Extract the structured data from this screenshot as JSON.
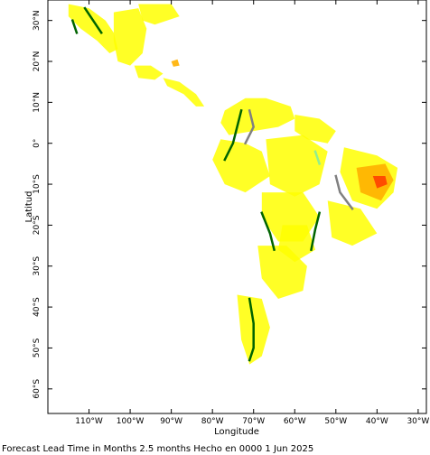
{
  "figure": {
    "y_axis_title": "Latitud",
    "x_axis_title": "Longitude",
    "caption": "Forecast Lead Time in Months 2.5 months Hecho en 0000 1 Jun 2025"
  },
  "map": {
    "lon_range": [
      -120,
      -28
    ],
    "lat_range": [
      -66,
      35
    ],
    "lon_ticks": [
      {
        "value": -110,
        "label": "110°W"
      },
      {
        "value": -100,
        "label": "100°W"
      },
      {
        "value": -90,
        "label": "90°W"
      },
      {
        "value": -80,
        "label": "80°W"
      },
      {
        "value": -70,
        "label": "70°W"
      },
      {
        "value": -60,
        "label": "60°W"
      },
      {
        "value": -50,
        "label": "50°W"
      },
      {
        "value": -40,
        "label": "40°W"
      },
      {
        "value": -30,
        "label": "30°W"
      }
    ],
    "lat_ticks": [
      {
        "value": 30,
        "label": "30°N"
      },
      {
        "value": 20,
        "label": "20°N"
      },
      {
        "value": 10,
        "label": "10°N"
      },
      {
        "value": 0,
        "label": "0°"
      },
      {
        "value": -10,
        "label": "10°S"
      },
      {
        "value": -20,
        "label": "20°S"
      },
      {
        "value": -30,
        "label": "30°S"
      },
      {
        "value": -40,
        "label": "40°S"
      },
      {
        "value": -50,
        "label": "50°S"
      },
      {
        "value": -60,
        "label": "60°S"
      }
    ],
    "colors": {
      "yellow": "#ffff00",
      "orange": "#ffb000",
      "red": "#ff4000",
      "dark_green": "#006400",
      "light_green": "#90ee90",
      "gray": "#808080"
    },
    "regions": [
      {
        "name": "Baja California / NW Mexico",
        "color": "yellow",
        "points": [
          [
            -115,
            34
          ],
          [
            -110,
            33
          ],
          [
            -106,
            30
          ],
          [
            -104,
            27
          ],
          [
            -103,
            23
          ],
          [
            -105,
            22
          ],
          [
            -108,
            25
          ],
          [
            -112,
            28
          ],
          [
            -115,
            31
          ]
        ]
      },
      {
        "name": "Mexican highlands",
        "color": "yellow",
        "points": [
          [
            -104,
            32
          ],
          [
            -98,
            33
          ],
          [
            -96,
            28
          ],
          [
            -97,
            22
          ],
          [
            -100,
            19
          ],
          [
            -103,
            20
          ],
          [
            -104,
            25
          ]
        ]
      },
      {
        "name": "Texas / Gulf coast",
        "color": "yellow",
        "points": [
          [
            -98,
            34
          ],
          [
            -90,
            34
          ],
          [
            -88,
            31
          ],
          [
            -94,
            29
          ],
          [
            -97,
            30
          ]
        ]
      },
      {
        "name": "Southern Mexico",
        "color": "yellow",
        "points": [
          [
            -99,
            19
          ],
          [
            -95,
            19
          ],
          [
            -92,
            17
          ],
          [
            -94,
            15.5
          ],
          [
            -98,
            16
          ]
        ]
      },
      {
        "name": "Central America",
        "color": "yellow",
        "points": [
          [
            -92,
            16
          ],
          [
            -88,
            15
          ],
          [
            -84,
            12
          ],
          [
            -82,
            9
          ],
          [
            -84,
            9
          ],
          [
            -87,
            12
          ],
          [
            -91,
            14
          ]
        ]
      },
      {
        "name": "Colombia / Venezuela",
        "color": "yellow",
        "points": [
          [
            -77,
            8
          ],
          [
            -72,
            11
          ],
          [
            -67,
            11
          ],
          [
            -61,
            9
          ],
          [
            -60,
            6
          ],
          [
            -64,
            4
          ],
          [
            -70,
            3
          ],
          [
            -76,
            2
          ],
          [
            -78,
            5
          ]
        ]
      },
      {
        "name": "Guianas / North Brazil",
        "color": "yellow",
        "points": [
          [
            -60,
            7
          ],
          [
            -54,
            6
          ],
          [
            -50,
            3
          ],
          [
            -52,
            0
          ],
          [
            -57,
            1
          ],
          [
            -60,
            3
          ]
        ]
      },
      {
        "name": "Amazon west",
        "color": "yellow",
        "points": [
          [
            -78,
            1
          ],
          [
            -72,
            0
          ],
          [
            -68,
            -2
          ],
          [
            -66,
            -8
          ],
          [
            -72,
            -12
          ],
          [
            -77,
            -10
          ],
          [
            -80,
            -4
          ]
        ]
      },
      {
        "name": "Amazon central",
        "color": "yellow",
        "points": [
          [
            -67,
            1
          ],
          [
            -58,
            2
          ],
          [
            -52,
            -2
          ],
          [
            -54,
            -10
          ],
          [
            -60,
            -13
          ],
          [
            -66,
            -10
          ]
        ]
      },
      {
        "name": "Northeast Brazil",
        "color": "yellow",
        "points": [
          [
            -48,
            -1
          ],
          [
            -40,
            -3
          ],
          [
            -35,
            -6
          ],
          [
            -36,
            -12
          ],
          [
            -40,
            -16
          ],
          [
            -46,
            -14
          ],
          [
            -49,
            -7
          ]
        ]
      },
      {
        "name": "Bolivia / Mato Grosso",
        "color": "yellow",
        "points": [
          [
            -68,
            -12
          ],
          [
            -58,
            -12
          ],
          [
            -54,
            -18
          ],
          [
            -58,
            -24
          ],
          [
            -64,
            -24
          ],
          [
            -68,
            -18
          ]
        ]
      },
      {
        "name": "Southeast Brazil",
        "color": "yellow",
        "points": [
          [
            -52,
            -14
          ],
          [
            -44,
            -16
          ],
          [
            -40,
            -22
          ],
          [
            -46,
            -25
          ],
          [
            -51,
            -23
          ]
        ]
      },
      {
        "name": "Paraguay / Chaco",
        "color": "yellow",
        "points": [
          [
            -63,
            -20
          ],
          [
            -57,
            -20
          ],
          [
            -55,
            -26
          ],
          [
            -60,
            -29
          ],
          [
            -64,
            -26
          ]
        ]
      },
      {
        "name": "Argentina pampas",
        "color": "yellow",
        "points": [
          [
            -69,
            -25
          ],
          [
            -62,
            -25
          ],
          [
            -57,
            -30
          ],
          [
            -58,
            -36
          ],
          [
            -64,
            -38
          ],
          [
            -68,
            -33
          ]
        ]
      },
      {
        "name": "Patagonia",
        "color": "yellow",
        "points": [
          [
            -74,
            -37
          ],
          [
            -68,
            -38
          ],
          [
            -66,
            -45
          ],
          [
            -68,
            -52
          ],
          [
            -71,
            -54
          ],
          [
            -73,
            -48
          ]
        ]
      },
      {
        "name": "NE Brazil warm anomaly",
        "color": "orange",
        "points": [
          [
            -45,
            -6
          ],
          [
            -38,
            -5
          ],
          [
            -36,
            -9
          ],
          [
            -39,
            -14
          ],
          [
            -44,
            -12
          ]
        ]
      },
      {
        "name": "NE Brazil core",
        "color": "red",
        "points": [
          [
            -41,
            -8
          ],
          [
            -38,
            -8
          ],
          [
            -37.5,
            -10
          ],
          [
            -40,
            -11
          ]
        ]
      },
      {
        "name": "Yucatan speck",
        "color": "orange",
        "points": [
          [
            -90,
            20
          ],
          [
            -88.5,
            20.5
          ],
          [
            -88,
            19
          ],
          [
            -89.5,
            18.7
          ]
        ]
      }
    ],
    "lines": [
      {
        "name": "Sierra Madre Occidental",
        "color": "dark_green",
        "points": [
          [
            -111,
            33
          ],
          [
            -109,
            30
          ],
          [
            -107,
            27
          ]
        ]
      },
      {
        "name": "Baja ridge",
        "color": "dark_green",
        "points": [
          [
            -114,
            30
          ],
          [
            -113,
            27
          ]
        ]
      },
      {
        "name": "Andes north",
        "color": "dark_green",
        "points": [
          [
            -73,
            8
          ],
          [
            -74,
            4
          ],
          [
            -75,
            0
          ],
          [
            -77,
            -4
          ]
        ]
      },
      {
        "name": "Andes central",
        "color": "dark_green",
        "points": [
          [
            -68,
            -17
          ],
          [
            -66,
            -22
          ],
          [
            -65,
            -26
          ]
        ]
      },
      {
        "name": "Parana",
        "color": "dark_green",
        "points": [
          [
            -54,
            -17
          ],
          [
            -55,
            -21
          ],
          [
            -56,
            -26
          ]
        ]
      },
      {
        "name": "Southern Andes",
        "color": "dark_green",
        "points": [
          [
            -71,
            -38
          ],
          [
            -70,
            -44
          ],
          [
            -70,
            -50
          ],
          [
            -71,
            -53
          ]
        ]
      },
      {
        "name": "Sao Francisco",
        "color": "gray",
        "points": [
          [
            -50,
            -8
          ],
          [
            -49,
            -12
          ],
          [
            -46,
            -16
          ]
        ]
      },
      {
        "name": "Andes gray",
        "color": "gray",
        "points": [
          [
            -71,
            8
          ],
          [
            -70,
            4
          ],
          [
            -72,
            0
          ]
        ]
      },
      {
        "name": "Brazil central",
        "color": "light_green",
        "points": [
          [
            -55,
            -2
          ],
          [
            -54,
            -5
          ]
        ]
      }
    ]
  }
}
